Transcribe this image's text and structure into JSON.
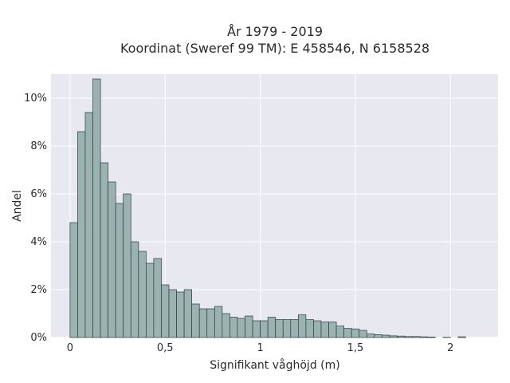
{
  "chart_data": {
    "type": "bar",
    "title": "År 1979 - 2019",
    "subtitle": "Koordinat (Sweref 99 TM): E 458546, N 6158528",
    "xlabel": "Signifikant våghöjd (m)",
    "ylabel": "Andel",
    "xlim": [
      -0.1,
      2.25
    ],
    "ylim": [
      0,
      11
    ],
    "x_ticks": [
      0,
      0.5,
      1,
      1.5,
      2
    ],
    "x_tick_labels": [
      "0",
      "0,5",
      "1",
      "1,5",
      "2"
    ],
    "y_ticks": [
      0,
      2,
      4,
      6,
      8,
      10
    ],
    "y_tick_labels": [
      "0%",
      "2%",
      "4%",
      "6%",
      "8%",
      "10%"
    ],
    "bin_width": 0.04,
    "bin_starts": [
      0,
      0.04,
      0.08,
      0.12,
      0.16,
      0.2,
      0.24,
      0.28,
      0.32,
      0.36,
      0.4,
      0.44,
      0.48,
      0.52,
      0.56,
      0.6,
      0.64,
      0.68,
      0.72,
      0.76,
      0.8,
      0.84,
      0.88,
      0.92,
      0.96,
      1.0,
      1.04,
      1.08,
      1.12,
      1.16,
      1.2,
      1.24,
      1.28,
      1.32,
      1.36,
      1.4,
      1.44,
      1.48,
      1.52,
      1.56,
      1.6,
      1.64,
      1.68,
      1.72,
      1.76,
      1.8,
      1.84,
      1.88,
      1.92,
      1.96,
      2.0,
      2.04,
      2.08
    ],
    "values": [
      4.8,
      8.6,
      9.4,
      10.8,
      7.3,
      6.5,
      5.6,
      6.0,
      4.0,
      3.6,
      3.1,
      3.3,
      2.2,
      2.0,
      1.9,
      2.0,
      1.4,
      1.2,
      1.2,
      1.3,
      1.0,
      0.85,
      0.8,
      0.9,
      0.7,
      0.7,
      0.85,
      0.75,
      0.75,
      0.75,
      0.95,
      0.75,
      0.7,
      0.65,
      0.65,
      0.48,
      0.38,
      0.36,
      0.3,
      0.15,
      0.12,
      0.1,
      0.07,
      0.06,
      0.04,
      0.04,
      0.03,
      0.02,
      0.0,
      0.01,
      0.0,
      0.03,
      0.0
    ],
    "grid": true,
    "bar_color": "#9ab3b0",
    "bar_edge_color": "#2e3d3c",
    "plot_background": "#e8e8f1",
    "grid_color": "#ffffff"
  }
}
